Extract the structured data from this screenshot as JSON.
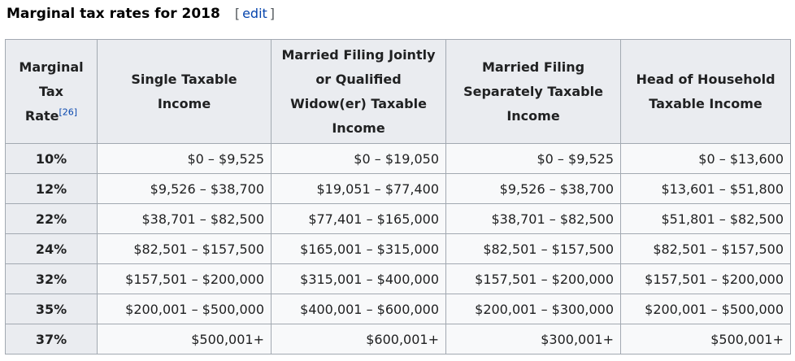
{
  "section": {
    "title": "Marginal tax rates for 2018",
    "edit_open": "[",
    "edit_label": "edit",
    "edit_close": "]"
  },
  "table": {
    "headers": {
      "rate_line1": "Marginal",
      "rate_line2": "Tax",
      "rate_line3": "Rate",
      "rate_ref": "[26]",
      "single": "Single Taxable Income",
      "married_joint": "Married Filing Jointly or Qualified Widow(er) Taxable Income",
      "married_separate": "Married Filing Separately Taxable Income",
      "head_household": "Head of Household Taxable Income"
    },
    "rows": [
      {
        "rate": "10%",
        "single": "$0 – $9,525",
        "married_joint": "$0 – $19,050",
        "married_separate": "$0 – $9,525",
        "head_household": "$0 – $13,600"
      },
      {
        "rate": "12%",
        "single": "$9,526 – $38,700",
        "married_joint": "$19,051 – $77,400",
        "married_separate": "$9,526 – $38,700",
        "head_household": "$13,601 – $51,800"
      },
      {
        "rate": "22%",
        "single": "$38,701 – $82,500",
        "married_joint": "$77,401 – $165,000",
        "married_separate": "$38,701 – $82,500",
        "head_household": "$51,801 – $82,500"
      },
      {
        "rate": "24%",
        "single": "$82,501 – $157,500",
        "married_joint": "$165,001 – $315,000",
        "married_separate": "$82,501 – $157,500",
        "head_household": "$82,501 – $157,500"
      },
      {
        "rate": "32%",
        "single": "$157,501 – $200,000",
        "married_joint": "$315,001 – $400,000",
        "married_separate": "$157,501 – $200,000",
        "head_household": "$157,501 – $200,000"
      },
      {
        "rate": "35%",
        "single": "$200,001 – $500,000",
        "married_joint": "$400,001 – $600,000",
        "married_separate": "$200,001 – $300,000",
        "head_household": "$200,001 – $500,000"
      },
      {
        "rate": "37%",
        "single": "$500,001+",
        "married_joint": "$600,001+",
        "married_separate": "$300,001+",
        "head_household": "$500,001+"
      }
    ]
  },
  "colors": {
    "link": "#0645ad",
    "header_bg": "#eaecf0",
    "cell_bg": "#f8f9fa",
    "border": "#a2a9b1"
  }
}
